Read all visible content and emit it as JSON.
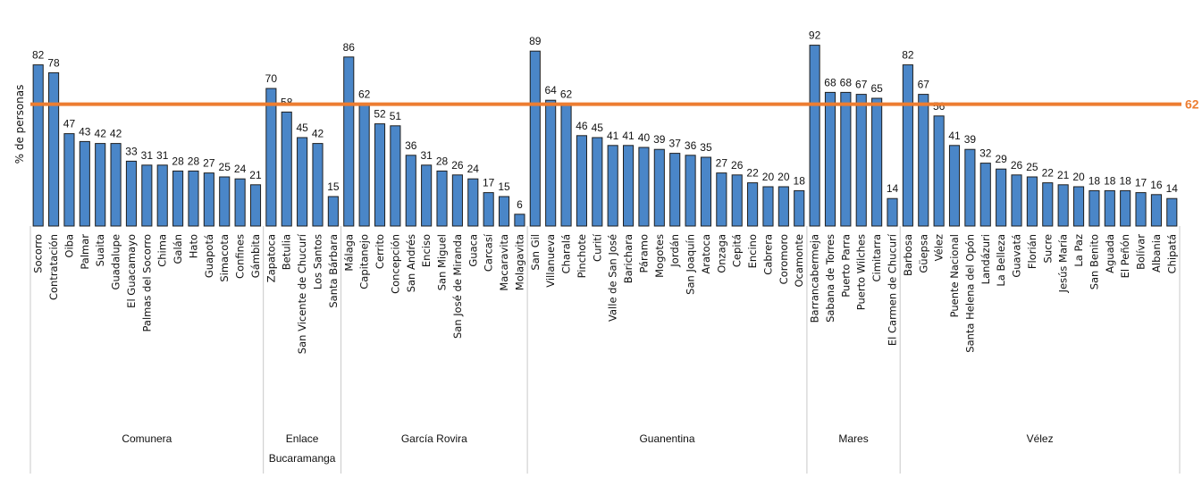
{
  "chart_data": {
    "type": "bar",
    "title": "",
    "ylabel": "% de personas",
    "xlabel": "",
    "ylim": [
      0,
      95
    ],
    "grid": false,
    "reference_line": {
      "value": 62,
      "label": "62",
      "color": "#ed7d31"
    },
    "bar_color": "#4a86c8",
    "groups": [
      {
        "name": "Comunera",
        "categories": [
          "Socorro",
          "Contratación",
          "Oiba",
          "Palmar",
          "Suaita",
          "Guadalupe",
          "El Guacamayo",
          "Palmas del Socorro",
          "Chima",
          "Galán",
          "Hato",
          "Guapotá",
          "Simacota",
          "Confines",
          "Gámbita"
        ],
        "values": [
          82,
          78,
          47,
          43,
          42,
          42,
          33,
          31,
          31,
          28,
          28,
          27,
          25,
          24,
          21
        ]
      },
      {
        "name": "Enlace Bucaramanga",
        "name_lines": [
          "Enlace",
          "Bucaramanga"
        ],
        "categories": [
          "Zapatoca",
          "Betulia",
          "San Vicente de Chucurí",
          "Los Santos",
          "Santa Bárbara"
        ],
        "values": [
          70,
          58,
          45,
          42,
          15
        ]
      },
      {
        "name": "García Rovira",
        "categories": [
          "Málaga",
          "Capitanejo",
          "Cerrito",
          "Concepción",
          "San Andrés",
          "Enciso",
          "San Miguel",
          "San José de Miranda",
          "Guaca",
          "Carcasí",
          "Macaravita",
          "Molagavita"
        ],
        "values": [
          86,
          62,
          52,
          51,
          36,
          31,
          28,
          26,
          24,
          17,
          15,
          6
        ]
      },
      {
        "name": "Guanentina",
        "categories": [
          "San Gil",
          "Villanueva",
          "Charalá",
          "Pinchote",
          "Curití",
          "Valle de San José",
          "Barichara",
          "Páramo",
          "Mogotes",
          "Jordán",
          "San Joaquín",
          "Aratoca",
          "Onzaga",
          "Cepitá",
          "Encino",
          "Cabrera",
          "Coromoro",
          "Ocamonte"
        ],
        "values": [
          89,
          64,
          62,
          46,
          45,
          41,
          41,
          40,
          39,
          37,
          36,
          35,
          27,
          26,
          22,
          20,
          20,
          18
        ]
      },
      {
        "name": "Mares",
        "categories": [
          "Barrancabermeja",
          "Sabana de Torres",
          "Puerto Parra",
          "Puerto Wilches",
          "Cimitarra",
          "El Carmen de Chucurí"
        ],
        "values": [
          92,
          68,
          68,
          67,
          65,
          14
        ]
      },
      {
        "name": "Vélez",
        "categories": [
          "Barbosa",
          "Güepsa",
          "Vélez",
          "Puente Nacional",
          "Santa Helena del Opón",
          "Landázuri",
          "La Belleza",
          "Guavatá",
          "Florián",
          "Sucre",
          "Jesús María",
          "La Paz",
          "San Benito",
          "Aguada",
          "El Peñón",
          "Bolívar",
          "Albania",
          "Chipatá"
        ],
        "values": [
          82,
          67,
          56,
          41,
          39,
          32,
          29,
          26,
          25,
          22,
          21,
          20,
          18,
          18,
          18,
          17,
          16,
          14
        ]
      }
    ]
  }
}
